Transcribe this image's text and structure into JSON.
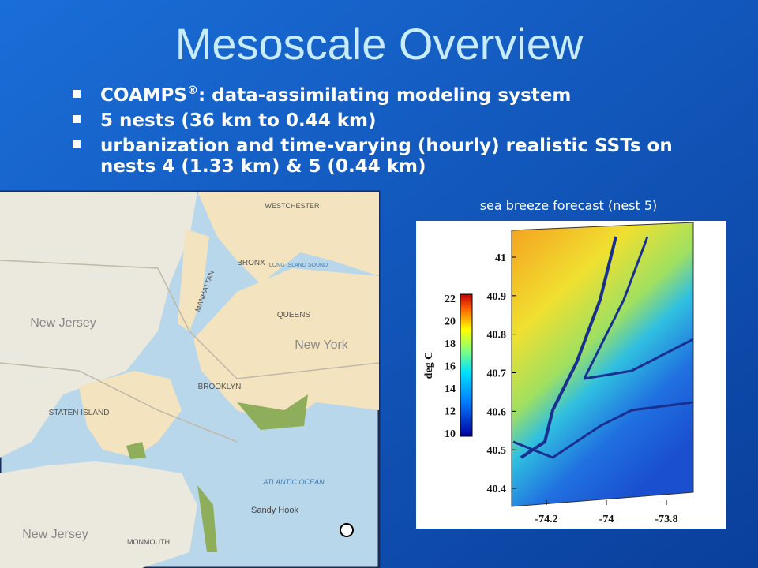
{
  "title": "Mesoscale Overview",
  "bullets": [
    {
      "text": "COAMPS",
      "sup": "®",
      "rest": ": data-assimilating modeling system"
    },
    {
      "text": "5 nests (36 km to 0.44 km)"
    },
    {
      "lines": [
        "urbanization and time-varying (hourly) realistic SSTs on",
        "nests 4 (1.33 km) & 5 (0.44 km)"
      ]
    }
  ],
  "map": {
    "labels": [
      "WESTCHESTER",
      "LONG ISLAND SOUND",
      "BRONX",
      "MANHATTAN",
      "QUEENS",
      "New Jersey",
      "New York",
      "BROOKLYN",
      "STATEN ISLAND",
      "ATLANTIC OCEAN",
      "Sandy Hook",
      "New Jersey",
      "MONMOUTH"
    ]
  },
  "forecast": {
    "caption": "sea breeze forecast (nest 5)",
    "colorbar_label": "deg C",
    "colorbar_ticks": [
      22,
      20,
      18,
      16,
      14,
      12,
      10
    ],
    "yticks": [
      41,
      40.9,
      40.8,
      40.7,
      40.6,
      40.5,
      40.4
    ],
    "xticks": [
      -74.2,
      -74,
      -73.8
    ]
  }
}
